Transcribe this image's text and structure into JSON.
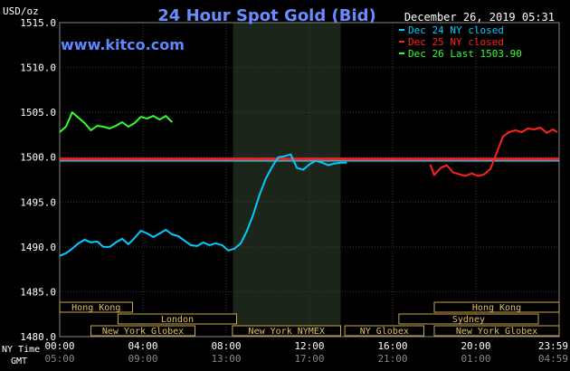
{
  "header": {
    "title": "24 Hour Spot Gold (Bid)",
    "unit": "USD/oz",
    "timestamp": "December 26, 2019 05:31",
    "site": "www.kitco.com"
  },
  "chart_data": {
    "type": "line",
    "title": "24 Hour Spot Gold (Bid)",
    "ylabel": "USD/oz",
    "ylim": [
      1480,
      1515
    ],
    "ytick_labels": [
      "1515.0",
      "1510.0",
      "1505.0",
      "1500.0",
      "1495.0",
      "1490.0",
      "1485.0",
      "1480.0"
    ],
    "yticks": [
      1515,
      1510,
      1505,
      1500,
      1495,
      1490,
      1485,
      1480
    ],
    "xlim": [
      0,
      24
    ],
    "xticks": [
      0,
      4,
      8,
      12,
      16,
      20,
      23.983
    ],
    "x_axis_labels": {
      "ny_label": "NY Time",
      "gmt_label": "GMT",
      "ny_ticks": [
        "00:00",
        "04:00",
        "08:00",
        "12:00",
        "16:00",
        "20:00",
        "23:59"
      ],
      "gmt_ticks": [
        "05:00",
        "09:00",
        "13:00",
        "17:00",
        "21:00",
        "01:00",
        "04:59"
      ]
    },
    "grid": true,
    "shaded_session_hours": [
      8.33,
      13.5
    ],
    "legend_position": "top-right",
    "legend": [
      {
        "text": "Dec 24 NY closed",
        "color": "#00ccff"
      },
      {
        "text": "Dec 25 NY closed",
        "color": "#ff2020"
      },
      {
        "text": "Dec 26 Last 1503.90",
        "color": "#30ff30"
      }
    ],
    "reference_lines": [
      {
        "name": "Dec 24 NY closed",
        "value": 1499.6,
        "color": "#00ccff"
      },
      {
        "name": "Dec 25 NY closed",
        "value": 1499.8,
        "color": "#ff2020"
      }
    ],
    "series": [
      {
        "name": "Dec 24",
        "color": "#00ccff",
        "x": [
          0,
          0.3,
          0.6,
          0.9,
          1.2,
          1.5,
          1.8,
          2.1,
          2.4,
          2.7,
          3.0,
          3.3,
          3.6,
          3.9,
          4.2,
          4.5,
          4.8,
          5.1,
          5.4,
          5.7,
          6.0,
          6.3,
          6.6,
          6.9,
          7.2,
          7.5,
          7.8,
          8.1,
          8.4,
          8.7,
          9.0,
          9.3,
          9.6,
          9.9,
          10.2,
          10.5,
          10.8,
          11.1,
          11.4,
          11.7,
          12.0,
          12.3,
          12.6,
          12.9,
          13.2,
          13.5,
          13.8
        ],
        "y": [
          1489.0,
          1489.3,
          1489.8,
          1490.4,
          1490.8,
          1490.5,
          1490.6,
          1490.0,
          1490.0,
          1490.5,
          1490.9,
          1490.3,
          1491.0,
          1491.8,
          1491.5,
          1491.1,
          1491.5,
          1491.9,
          1491.4,
          1491.2,
          1490.7,
          1490.2,
          1490.1,
          1490.5,
          1490.2,
          1490.4,
          1490.2,
          1489.6,
          1489.8,
          1490.4,
          1491.8,
          1493.6,
          1495.8,
          1497.6,
          1498.9,
          1500.0,
          1500.1,
          1500.3,
          1498.8,
          1498.6,
          1499.2,
          1499.6,
          1499.4,
          1499.1,
          1499.3,
          1499.4,
          1499.4
        ]
      },
      {
        "name": "Dec 25",
        "color": "#ff2020",
        "x": [
          17.8,
          18.0,
          18.3,
          18.6,
          18.9,
          19.2,
          19.5,
          19.8,
          20.1,
          20.4,
          20.7,
          21.0,
          21.3,
          21.6,
          21.9,
          22.2,
          22.5,
          22.8,
          23.1,
          23.4,
          23.7,
          23.9
        ],
        "y": [
          1499.2,
          1498.0,
          1498.8,
          1499.1,
          1498.3,
          1498.1,
          1497.9,
          1498.2,
          1497.9,
          1498.1,
          1498.7,
          1500.5,
          1502.3,
          1502.8,
          1503.0,
          1502.8,
          1503.2,
          1503.1,
          1503.3,
          1502.7,
          1503.1,
          1502.8
        ]
      },
      {
        "name": "Dec 26",
        "color": "#30ff30",
        "x": [
          0,
          0.3,
          0.6,
          0.9,
          1.2,
          1.5,
          1.8,
          2.1,
          2.4,
          2.7,
          3.0,
          3.3,
          3.6,
          3.9,
          4.2,
          4.5,
          4.8,
          5.1,
          5.4
        ],
        "y": [
          1502.8,
          1503.4,
          1505.0,
          1504.4,
          1503.8,
          1503.0,
          1503.5,
          1503.4,
          1503.2,
          1503.5,
          1503.9,
          1503.4,
          1503.8,
          1504.5,
          1504.3,
          1504.6,
          1504.2,
          1504.6,
          1503.9
        ]
      }
    ],
    "market_sessions": [
      {
        "name": "Hong Kong",
        "start": 0,
        "end": 3.5,
        "row": 0
      },
      {
        "name": "Hong Kong",
        "start": 18.0,
        "end": 24,
        "row": 0
      },
      {
        "name": "London",
        "start": 2.8,
        "end": 8.5,
        "row": 1
      },
      {
        "name": "Sydney",
        "start": 16.3,
        "end": 23.0,
        "row": 1
      },
      {
        "name": "New York Globex",
        "start": 1.5,
        "end": 6.5,
        "row": 2
      },
      {
        "name": "New York NYMEX",
        "start": 8.3,
        "end": 13.5,
        "row": 2
      },
      {
        "name": "NY Globex",
        "start": 13.7,
        "end": 17.5,
        "row": 2
      },
      {
        "name": "New York Globex",
        "start": 18.0,
        "end": 24,
        "row": 2
      }
    ]
  }
}
